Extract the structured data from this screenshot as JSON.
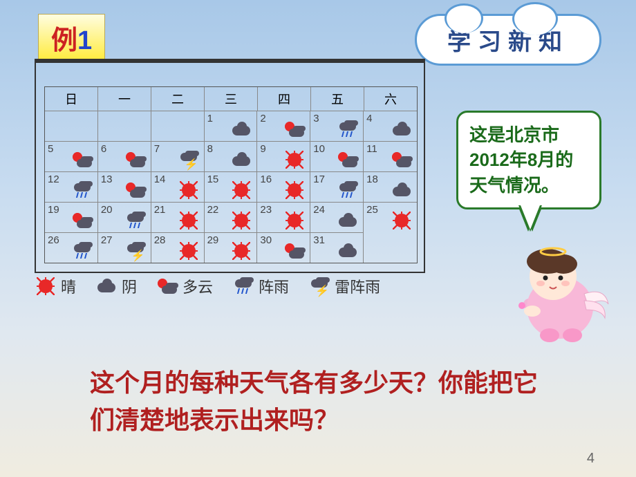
{
  "example": {
    "label": "例",
    "number": "1"
  },
  "title": "学习新知",
  "bubble_text": "这是北京市2012年8月的天气情况。",
  "question": "这个月的每种天气各有多少天？你能把它们清楚地表示出来吗？",
  "page_number": "4",
  "weekdays": [
    "日",
    "一",
    "二",
    "三",
    "四",
    "五",
    "六"
  ],
  "legend": [
    {
      "icon": "sun",
      "label": "晴"
    },
    {
      "icon": "cloud",
      "label": "阴"
    },
    {
      "icon": "pcloud",
      "label": "多云"
    },
    {
      "icon": "rain",
      "label": "阵雨"
    },
    {
      "icon": "thunder",
      "label": "雷阵雨"
    }
  ],
  "calendar": {
    "leading_blanks": 3,
    "days": [
      {
        "d": 1,
        "w": "cloud"
      },
      {
        "d": 2,
        "w": "pcloud"
      },
      {
        "d": 3,
        "w": "rain"
      },
      {
        "d": 4,
        "w": "cloud"
      },
      {
        "d": 5,
        "w": "pcloud"
      },
      {
        "d": 6,
        "w": "pcloud"
      },
      {
        "d": 7,
        "w": "thunder"
      },
      {
        "d": 8,
        "w": "cloud"
      },
      {
        "d": 9,
        "w": "sun"
      },
      {
        "d": 10,
        "w": "pcloud"
      },
      {
        "d": 11,
        "w": "pcloud"
      },
      {
        "d": 12,
        "w": "rain"
      },
      {
        "d": 13,
        "w": "pcloud"
      },
      {
        "d": 14,
        "w": "sun"
      },
      {
        "d": 15,
        "w": "sun"
      },
      {
        "d": 16,
        "w": "sun"
      },
      {
        "d": 17,
        "w": "rain"
      },
      {
        "d": 18,
        "w": "cloud"
      },
      {
        "d": 19,
        "w": "pcloud"
      },
      {
        "d": 20,
        "w": "rain"
      },
      {
        "d": 21,
        "w": "sun"
      },
      {
        "d": 22,
        "w": "sun"
      },
      {
        "d": 23,
        "w": "sun"
      },
      {
        "d": 24,
        "w": "cloud"
      },
      {
        "d": 25,
        "w": "sun"
      },
      {
        "d": 26,
        "w": "rain"
      },
      {
        "d": 27,
        "w": "thunder"
      },
      {
        "d": 28,
        "w": "sun"
      },
      {
        "d": 29,
        "w": "sun"
      },
      {
        "d": 30,
        "w": "pcloud"
      },
      {
        "d": 31,
        "w": "cloud"
      }
    ]
  },
  "colors": {
    "accent_red": "#cc2222",
    "accent_blue": "#2244cc",
    "cloud_border": "#5b9bd5",
    "bubble_border": "#2a7a2a",
    "question_color": "#b02020"
  }
}
